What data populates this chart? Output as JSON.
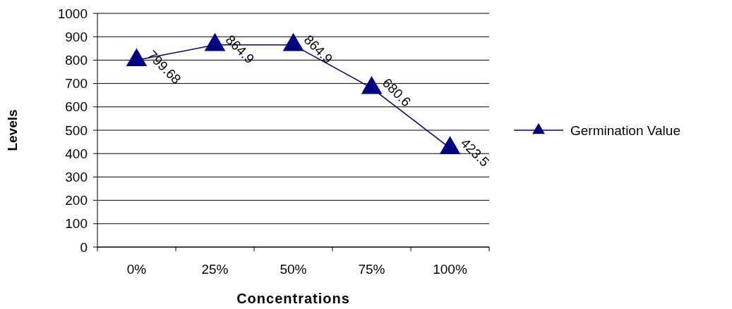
{
  "chart_data": {
    "type": "line",
    "xlabel": "Concentrations",
    "ylabel": "Levels",
    "categories": [
      "0%",
      "25%",
      "50%",
      "75%",
      "100%"
    ],
    "series": [
      {
        "name": "Germination Value",
        "color": "#000080",
        "values": [
          799.68,
          864.9,
          864.9,
          680.6,
          423.5
        ]
      }
    ],
    "ylim": [
      0,
      1000
    ],
    "yticks": [
      0,
      100,
      200,
      300,
      400,
      500,
      600,
      700,
      800,
      900,
      1000
    ],
    "grid": "y",
    "legend": "right",
    "marker": "triangle",
    "data_labels": true
  }
}
